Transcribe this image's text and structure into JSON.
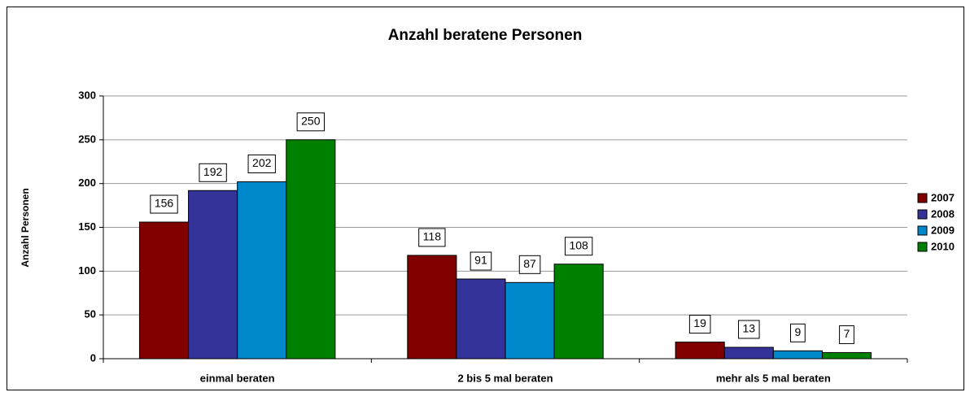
{
  "chart_data": {
    "type": "bar",
    "title": "Anzahl beratene Personen",
    "y_label": "Anzahl Personen",
    "categories": [
      "einmal beraten",
      "2 bis 5 mal beraten",
      "mehr als 5 mal beraten"
    ],
    "series": [
      {
        "name": "2007",
        "color": "#800000",
        "values": [
          156,
          118,
          19
        ]
      },
      {
        "name": "2008",
        "color": "#333399",
        "values": [
          192,
          91,
          13
        ]
      },
      {
        "name": "2009",
        "color": "#0088cc",
        "values": [
          202,
          87,
          9
        ]
      },
      {
        "name": "2010",
        "color": "#008000",
        "values": [
          250,
          108,
          7
        ]
      }
    ],
    "ylim": [
      0,
      300
    ],
    "yticks": [
      0,
      50,
      100,
      150,
      200,
      250,
      300
    ],
    "grid": true,
    "legend": "right"
  }
}
